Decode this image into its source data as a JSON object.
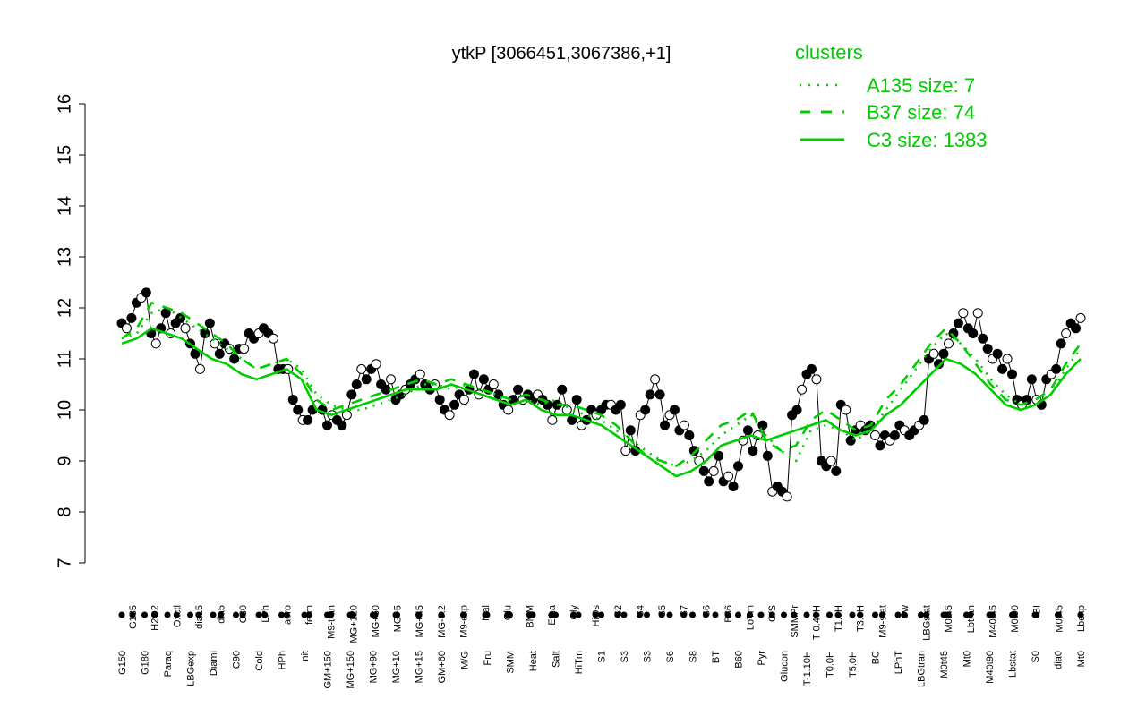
{
  "chart_data": {
    "type": "line",
    "title": "ytkP [3066451,3067386,+1]",
    "ylim": [
      7,
      16
    ],
    "yticks": [
      "7",
      "8",
      "9",
      "10",
      "11",
      "12",
      "13",
      "14",
      "15",
      "16"
    ],
    "xlabels_row1": [
      "G135",
      "H2O2",
      "Oxctl",
      "dia15",
      "dia5",
      "C30",
      "LPh",
      "aero",
      "ferm",
      "M9-tran",
      "MG+120",
      "MG+60",
      "MG+5",
      "MG+45",
      "MG-0.2",
      "M9-exp",
      "Mal",
      "Glu",
      "BMM",
      "Etha",
      "Gly",
      "HiOs",
      "S2",
      "S4",
      "S5",
      "S7",
      "S6",
      "B36",
      "LoTm",
      "G/S",
      "SMMPr",
      "T-0.40H",
      "T1.0H",
      "T3.0H",
      "M9-stat",
      "Sw",
      "LBGstat",
      "M0t45",
      "Lbtran",
      "M40t45",
      "M0t90",
      "BI",
      "M0t45",
      "Lbexp"
    ],
    "xlabels_row2": [
      "G150",
      "G180",
      "Paraq",
      "LBGexp",
      "Diami",
      "C90",
      "Cold",
      "HPh",
      "nit",
      "GM+150",
      "MG+150",
      "MG+90",
      "MG+10",
      "MG+15",
      "GM+60",
      "M/G",
      "Fru",
      "SMM",
      "Heat",
      "Salt",
      "HiTm",
      "S1",
      "S3",
      "S3",
      "S6",
      "S8",
      "BT",
      "B60",
      "Pyr",
      "Glucon",
      "T-1.10H",
      "T0.0H",
      "T5.0H",
      "BC",
      "LPhT",
      "LBGtran",
      "M0t45",
      "Mt0",
      "M40t90",
      "Lbstat",
      "S0",
      "dia0",
      "Mt0"
    ],
    "series": [
      {
        "style": "points",
        "color": "#000000",
        "values": [
          11.7,
          11.6,
          11.8,
          12.1,
          12.2,
          12.3,
          11.5,
          11.3,
          11.6,
          11.9,
          11.5,
          11.7,
          11.8,
          11.6,
          11.3,
          11.1,
          10.8,
          11.5,
          11.7,
          11.3,
          11.1,
          11.3,
          11.2,
          11.0,
          11.2,
          11.2,
          11.5,
          11.4,
          11.5,
          11.6,
          11.5,
          11.4,
          10.8,
          10.8,
          10.8,
          10.2,
          10.0,
          9.8,
          9.8,
          10.0,
          10.1,
          10.0,
          9.7,
          9.9,
          9.8,
          9.7,
          9.9,
          10.3,
          10.5,
          10.8,
          10.6,
          10.8,
          10.9,
          10.5,
          10.4,
          10.6,
          10.2,
          10.3,
          10.4,
          10.5,
          10.6,
          10.7,
          10.5,
          10.4,
          10.5,
          10.2,
          10.0,
          9.9,
          10.1,
          10.3,
          10.2,
          10.4,
          10.7,
          10.3,
          10.6,
          10.4,
          10.5,
          10.3,
          10.1,
          10.0,
          10.2,
          10.4,
          10.2,
          10.3,
          10.2,
          10.3,
          10.2,
          10.1,
          9.8,
          10.1,
          10.4,
          10.0,
          9.8,
          10.2,
          9.7,
          9.8,
          10.0,
          9.9,
          10.0,
          10.1,
          10.1,
          10.0,
          10.1,
          9.2,
          9.6,
          9.2,
          9.9,
          10.0,
          10.3,
          10.6,
          10.3,
          9.7,
          9.9,
          10.0,
          9.6,
          9.7,
          9.5,
          9.2,
          9.0,
          8.8,
          8.6,
          8.8,
          9.1,
          8.6,
          8.7,
          8.5,
          8.9,
          9.4,
          9.6,
          9.2,
          9.5,
          9.7,
          9.1,
          8.4,
          8.5,
          8.4,
          8.3,
          9.9,
          10.0,
          10.4,
          10.7,
          10.8,
          10.6,
          9.0,
          8.9,
          9.0,
          8.8,
          10.1,
          10.0,
          9.4,
          9.6,
          9.7,
          9.6,
          9.7,
          9.5,
          9.3,
          9.5,
          9.4,
          9.5,
          9.7,
          9.6,
          9.5,
          9.6,
          9.7,
          9.8,
          11.0,
          11.1,
          10.9,
          11.1,
          11.3,
          11.5,
          11.7,
          11.9,
          11.6,
          11.5,
          11.9,
          11.4,
          11.2,
          11.0,
          11.1,
          10.8,
          11.0,
          10.7,
          10.2,
          10.1,
          10.2,
          10.6,
          10.2,
          10.1,
          10.6,
          10.7,
          10.8,
          11.3,
          11.5,
          11.7,
          11.6,
          11.8
        ]
      },
      {
        "name": "A135 size: 7",
        "style": "dotted",
        "color": "#00cc00",
        "values": [
          11.4,
          11.5,
          11.9,
          12.0,
          11.8,
          11.6,
          11.4,
          11.2,
          11.0,
          10.8,
          10.9,
          11.0,
          10.8,
          10.3,
          10.1,
          10.0,
          10.0,
          10.1,
          10.2,
          10.3,
          10.5,
          10.5,
          10.4,
          10.5,
          10.4,
          10.3,
          10.1,
          10.2,
          10.1,
          10.2,
          10.0,
          9.9,
          9.8,
          9.6,
          9.4,
          9.2,
          9.0,
          8.9,
          9.0,
          9.2,
          9.5,
          9.7,
          9.9,
          9.5,
          9.2,
          9.0,
          9.6,
          9.7,
          9.6,
          9.4,
          9.6,
          10.0,
          10.4,
          10.8,
          11.2,
          11.5,
          11.3,
          11.0,
          10.6,
          10.3,
          10.1,
          10.1,
          10.3,
          10.8,
          11.2
        ]
      },
      {
        "name": "B37 size: 74",
        "style": "dashed",
        "color": "#00cc00",
        "values": [
          11.4,
          11.6,
          12.1,
          12.0,
          11.9,
          11.7,
          11.5,
          11.3,
          11.0,
          10.8,
          10.9,
          11.0,
          10.7,
          10.2,
          10.0,
          10.1,
          10.2,
          10.3,
          10.4,
          10.5,
          10.6,
          10.5,
          10.6,
          10.5,
          10.4,
          10.3,
          10.2,
          10.3,
          10.2,
          10.1,
          10.1,
          10.0,
          9.9,
          9.7,
          9.4,
          9.1,
          9.0,
          8.9,
          9.1,
          9.4,
          9.7,
          9.8,
          10.0,
          9.4,
          9.2,
          9.3,
          9.8,
          10.0,
          9.8,
          9.6,
          9.7,
          10.2,
          10.5,
          10.9,
          11.3,
          11.6,
          11.3,
          10.9,
          10.5,
          10.2,
          10.1,
          10.2,
          10.4,
          10.9,
          11.3
        ]
      },
      {
        "name": "C3 size: 1383",
        "style": "solid",
        "color": "#00cc00",
        "values": [
          11.3,
          11.4,
          11.6,
          11.5,
          11.4,
          11.2,
          11.0,
          10.9,
          10.7,
          10.6,
          10.7,
          10.8,
          10.6,
          10.0,
          9.9,
          10.0,
          10.1,
          10.2,
          10.3,
          10.4,
          10.4,
          10.4,
          10.5,
          10.4,
          10.3,
          10.2,
          10.1,
          10.2,
          10.0,
          9.9,
          9.9,
          9.8,
          9.7,
          9.5,
          9.3,
          9.1,
          8.9,
          8.7,
          8.8,
          9.0,
          9.3,
          9.4,
          9.5,
          9.4,
          9.5,
          9.6,
          9.7,
          9.8,
          9.6,
          9.5,
          9.6,
          9.9,
          10.1,
          10.4,
          10.7,
          11.0,
          10.9,
          10.7,
          10.4,
          10.1,
          10.0,
          10.1,
          10.3,
          10.7,
          11.0
        ]
      }
    ],
    "legend": {
      "title": "clusters",
      "position": "top-right",
      "entries": [
        "A135 size: 7",
        "B37 size: 74",
        "C3 size: 1383"
      ]
    },
    "colors": {
      "cluster": "#00cc00",
      "points": "#000000",
      "axis": "#000000"
    }
  }
}
